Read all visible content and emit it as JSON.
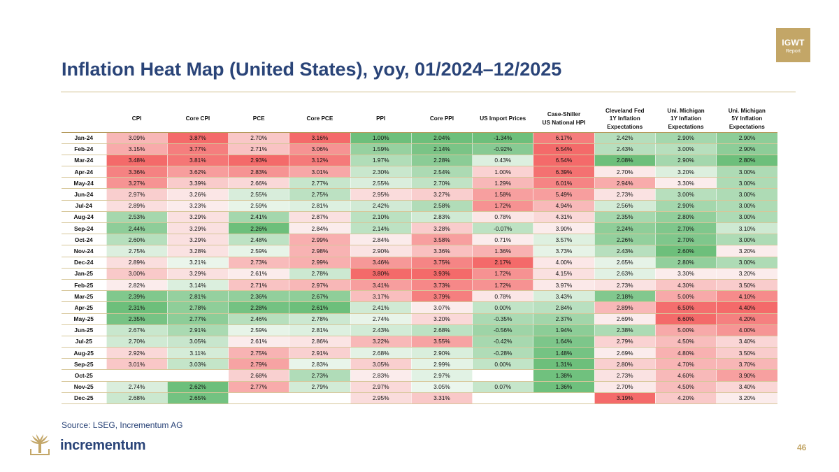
{
  "badge": {
    "line1": "IGWT",
    "line2": "Report"
  },
  "title": "Inflation Heat Map (United States), yoy, 01/2024–12/2025",
  "colors": {
    "title": "#2a4478",
    "gold": "#c3a667",
    "hot": "#f46a6a",
    "cool": "#6dbf7b"
  },
  "table": {
    "headers": [
      "CPI",
      "Core CPI",
      "PCE",
      "Core PCE",
      "PPI",
      "Core PPI",
      "US Import Prices",
      "Case-Shiller\nUS National HPI",
      "Cleveland Fed\n1Y Inflation\nExpectations",
      "Uni. Michigan\n1Y Inflation\nExpectations",
      "Uni. Michigan\n5Y Inflation\nExpectations"
    ],
    "rows": [
      {
        "label": "Jan-24",
        "values": [
          "3.09%",
          "3.87%",
          "2.70%",
          "3.16%",
          "1.00%",
          "2.04%",
          "-1.34%",
          "6.17%",
          "2.42%",
          "2.90%",
          "2.90%"
        ]
      },
      {
        "label": "Feb-24",
        "values": [
          "3.15%",
          "3.77%",
          "2.71%",
          "3.06%",
          "1.59%",
          "2.14%",
          "-0.92%",
          "6.54%",
          "2.43%",
          "3.00%",
          "2.90%"
        ]
      },
      {
        "label": "Mar-24",
        "values": [
          "3.48%",
          "3.81%",
          "2.93%",
          "3.12%",
          "1.97%",
          "2.28%",
          "0.43%",
          "6.54%",
          "2.08%",
          "2.90%",
          "2.80%"
        ]
      },
      {
        "label": "Apr-24",
        "values": [
          "3.36%",
          "3.62%",
          "2.83%",
          "3.01%",
          "2.30%",
          "2.54%",
          "1.00%",
          "6.39%",
          "2.70%",
          "3.20%",
          "3.00%"
        ]
      },
      {
        "label": "May-24",
        "values": [
          "3.27%",
          "3.39%",
          "2.66%",
          "2.77%",
          "2.55%",
          "2.70%",
          "1.29%",
          "6.01%",
          "2.94%",
          "3.30%",
          "3.00%"
        ]
      },
      {
        "label": "Jun-24",
        "values": [
          "2.97%",
          "3.26%",
          "2.55%",
          "2.75%",
          "2.95%",
          "3.27%",
          "1.58%",
          "5.49%",
          "2.73%",
          "3.00%",
          "3.00%"
        ]
      },
      {
        "label": "Jul-24",
        "values": [
          "2.89%",
          "3.23%",
          "2.59%",
          "2.81%",
          "2.42%",
          "2.58%",
          "1.72%",
          "4.94%",
          "2.56%",
          "2.90%",
          "3.00%"
        ]
      },
      {
        "label": "Aug-24",
        "values": [
          "2.53%",
          "3.29%",
          "2.41%",
          "2.87%",
          "2.10%",
          "2.83%",
          "0.78%",
          "4.31%",
          "2.35%",
          "2.80%",
          "3.00%"
        ]
      },
      {
        "label": "Sep-24",
        "values": [
          "2.44%",
          "3.29%",
          "2.26%",
          "2.84%",
          "2.14%",
          "3.28%",
          "-0.07%",
          "3.90%",
          "2.24%",
          "2.70%",
          "3.10%"
        ]
      },
      {
        "label": "Oct-24",
        "values": [
          "2.60%",
          "3.29%",
          "2.48%",
          "2.99%",
          "2.84%",
          "3.58%",
          "0.71%",
          "3.57%",
          "2.26%",
          "2.70%",
          "3.00%"
        ]
      },
      {
        "label": "Nov-24",
        "values": [
          "2.75%",
          "3.28%",
          "2.59%",
          "2.98%",
          "2.90%",
          "3.36%",
          "1.36%",
          "3.73%",
          "2.43%",
          "2.60%",
          "3.20%"
        ]
      },
      {
        "label": "Dec-24",
        "values": [
          "2.89%",
          "3.21%",
          "2.73%",
          "2.99%",
          "3.46%",
          "3.75%",
          "2.17%",
          "4.00%",
          "2.65%",
          "2.80%",
          "3.00%"
        ]
      },
      {
        "label": "Jan-25",
        "values": [
          "3.00%",
          "3.29%",
          "2.61%",
          "2.78%",
          "3.80%",
          "3.93%",
          "1.72%",
          "4.15%",
          "2.63%",
          "3.30%",
          "3.20%"
        ]
      },
      {
        "label": "Feb-25",
        "values": [
          "2.82%",
          "3.14%",
          "2.71%",
          "2.97%",
          "3.41%",
          "3.73%",
          "1.72%",
          "3.97%",
          "2.73%",
          "4.30%",
          "3.50%"
        ]
      },
      {
        "label": "Mar-25",
        "values": [
          "2.39%",
          "2.81%",
          "2.36%",
          "2.67%",
          "3.17%",
          "3.79%",
          "0.78%",
          "3.43%",
          "2.18%",
          "5.00%",
          "4.10%"
        ]
      },
      {
        "label": "Apr-25",
        "values": [
          "2.31%",
          "2.78%",
          "2.28%",
          "2.61%",
          "2.41%",
          "3.07%",
          "0.00%",
          "2.84%",
          "2.89%",
          "6.50%",
          "4.40%"
        ]
      },
      {
        "label": "May-25",
        "values": [
          "2.35%",
          "2.77%",
          "2.46%",
          "2.78%",
          "2.74%",
          "3.20%",
          "-0.35%",
          "2.37%",
          "2.69%",
          "6.60%",
          "4.20%"
        ]
      },
      {
        "label": "Jun-25",
        "values": [
          "2.67%",
          "2.91%",
          "2.59%",
          "2.81%",
          "2.43%",
          "2.68%",
          "-0.56%",
          "1.94%",
          "2.38%",
          "5.00%",
          "4.00%"
        ]
      },
      {
        "label": "Jul-25",
        "values": [
          "2.70%",
          "3.05%",
          "2.61%",
          "2.86%",
          "3.22%",
          "3.55%",
          "-0.42%",
          "1.64%",
          "2.79%",
          "4.50%",
          "3.40%"
        ]
      },
      {
        "label": "Aug-25",
        "values": [
          "2.92%",
          "3.11%",
          "2.75%",
          "2.91%",
          "2.68%",
          "2.90%",
          "-0.28%",
          "1.48%",
          "2.69%",
          "4.80%",
          "3.50%"
        ]
      },
      {
        "label": "Sep-25",
        "values": [
          "3.01%",
          "3.03%",
          "2.79%",
          "2.83%",
          "3.05%",
          "2.99%",
          "0.00%",
          "1.31%",
          "2.80%",
          "4.70%",
          "3.70%"
        ]
      },
      {
        "label": "Oct-25",
        "values": [
          "",
          "",
          "2.68%",
          "2.73%",
          "2.83%",
          "2.97%",
          "",
          "1.38%",
          "2.73%",
          "4.60%",
          "3.90%"
        ]
      },
      {
        "label": "Nov-25",
        "values": [
          "2.74%",
          "2.62%",
          "2.77%",
          "2.79%",
          "2.97%",
          "3.05%",
          "0.07%",
          "1.36%",
          "2.70%",
          "4.50%",
          "3.40%"
        ]
      },
      {
        "label": "Dec-25",
        "values": [
          "2.68%",
          "2.65%",
          "",
          "",
          "2.95%",
          "3.31%",
          "",
          "",
          "3.19%",
          "4.20%",
          "3.20%"
        ]
      }
    ]
  },
  "source": "Source: LSEG, Incrementum AG",
  "brand": "incrementum",
  "page_number": "46"
}
